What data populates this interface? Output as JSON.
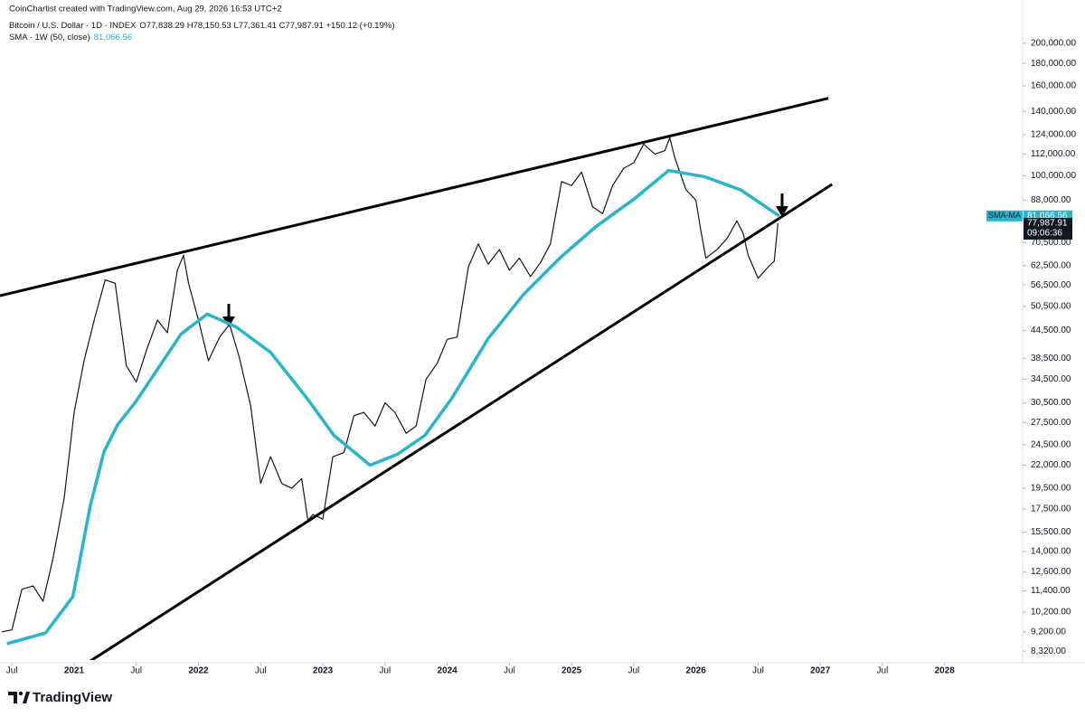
{
  "chart_data": {
    "type": "line",
    "credit": "CoinChartist created with TradingView.com, Aug 29, 2026 16:53 UTC+2",
    "ohlc": "O77,838.29 H78,150.53 L77,361.41 C77,987.91 +150.12 (+0.19%)",
    "log_scale": true,
    "grid": false,
    "xlim": [
      2020.404,
      2028.62
    ],
    "ylim": [
      7940,
      250800
    ],
    "xticks": [
      {
        "value": 2020.5,
        "label": "Jul"
      },
      2021,
      {
        "value": 2021.5,
        "label": "Jul"
      },
      2022,
      {
        "value": 2022.5,
        "label": "Jul"
      },
      2023,
      {
        "value": 2023.5,
        "label": "Jul"
      },
      2024,
      {
        "value": 2024.5,
        "label": "Jul"
      },
      2025,
      {
        "value": 2025.5,
        "label": "Jul"
      },
      2026,
      {
        "value": 2026.5,
        "label": "Jul"
      },
      2027,
      {
        "value": 2027.5,
        "label": "Jul"
      },
      2028
    ],
    "yticks": [
      {
        "value": 200000,
        "label": "200,000.00"
      },
      {
        "value": 180000,
        "label": "180,000.00"
      },
      {
        "value": 160000,
        "label": "160,000.00"
      },
      {
        "value": 140000,
        "label": "140,000.00"
      },
      {
        "value": 124000,
        "label": "124,000.00"
      },
      {
        "value": 112000,
        "label": "112,000.00"
      },
      {
        "value": 100000,
        "label": "100,000.00"
      },
      {
        "value": 88000,
        "label": "88,000.00"
      },
      {
        "value": 70500,
        "label": "70,500.00"
      },
      {
        "value": 62500,
        "label": "62,500.00"
      },
      {
        "value": 56500,
        "label": "56,500.00"
      },
      {
        "value": 50500,
        "label": "50,500.00"
      },
      {
        "value": 44500,
        "label": "44,500.00"
      },
      {
        "value": 38500,
        "label": "38,500.00"
      },
      {
        "value": 34500,
        "label": "34,500.00"
      },
      {
        "value": 30500,
        "label": "30,500.00"
      },
      {
        "value": 27500,
        "label": "27,500.00"
      },
      {
        "value": 24500,
        "label": "24,500.00"
      },
      {
        "value": 22000,
        "label": "22,000.00"
      },
      {
        "value": 19500,
        "label": "19,500.00"
      },
      {
        "value": 17500,
        "label": "17,500.00"
      },
      {
        "value": 15500,
        "label": "15,500.00"
      },
      {
        "value": 14000,
        "label": "14,000.00"
      },
      {
        "value": 12600,
        "label": "12,600.00"
      },
      {
        "value": 11400,
        "label": "11,400.00"
      },
      {
        "value": 10200,
        "label": "10,200.00"
      },
      {
        "value": 9200,
        "label": "9,200.00"
      },
      {
        "value": 8320,
        "label": "8,320.00"
      }
    ],
    "series": [
      {
        "name": "Bitcoin / U.S. Dollar · 1D · INDEX",
        "color": "#131722",
        "last_label": "77,987.91",
        "countdown": "09:06:36",
        "x": [
          2020.42,
          2020.5,
          2020.58,
          2020.67,
          2020.75,
          2020.83,
          2020.92,
          2021.0,
          2021.08,
          2021.17,
          2021.25,
          2021.33,
          2021.42,
          2021.5,
          2021.58,
          2021.67,
          2021.75,
          2021.83,
          2021.88,
          2021.92,
          2022.0,
          2022.08,
          2022.17,
          2022.25,
          2022.33,
          2022.42,
          2022.5,
          2022.58,
          2022.67,
          2022.75,
          2022.83,
          2022.88,
          2022.92,
          2023.0,
          2023.08,
          2023.17,
          2023.25,
          2023.33,
          2023.42,
          2023.5,
          2023.58,
          2023.67,
          2023.75,
          2023.83,
          2023.92,
          2024.0,
          2024.08,
          2024.17,
          2024.25,
          2024.33,
          2024.42,
          2024.5,
          2024.58,
          2024.67,
          2024.75,
          2024.83,
          2024.92,
          2025.0,
          2025.08,
          2025.17,
          2025.25,
          2025.33,
          2025.42,
          2025.5,
          2025.58,
          2025.67,
          2025.75,
          2025.79,
          2025.83,
          2025.92,
          2026.0,
          2026.04,
          2026.08,
          2026.17,
          2026.25,
          2026.33,
          2026.38,
          2026.42,
          2026.5,
          2026.58,
          2026.63,
          2026.66
        ],
        "values": [
          9200,
          9300,
          11500,
          11700,
          10800,
          13500,
          18500,
          29000,
          38000,
          48000,
          58000,
          57000,
          37000,
          34000,
          40000,
          47000,
          44000,
          61000,
          66000,
          57000,
          47000,
          38000,
          43000,
          46000,
          38500,
          30000,
          20000,
          23000,
          20000,
          19500,
          20500,
          16500,
          17000,
          16600,
          23000,
          23500,
          28500,
          29000,
          27000,
          30500,
          29000,
          26000,
          27000,
          34500,
          37500,
          42500,
          43000,
          62000,
          70000,
          63000,
          68000,
          61000,
          65000,
          59000,
          63500,
          70000,
          97000,
          95000,
          102000,
          85000,
          82000,
          95000,
          104000,
          107000,
          118000,
          112000,
          114000,
          122000,
          110000,
          93000,
          88000,
          75000,
          65000,
          68000,
          72000,
          79000,
          74000,
          66000,
          58500,
          62000,
          64000,
          77987.91
        ]
      },
      {
        "name": "SMA · 1W (50, close)",
        "color": "#26b5cc",
        "tag": "SMA-MA",
        "last_label": "81,066.56",
        "x": [
          2020.46,
          2020.77,
          2020.99,
          2021.13,
          2021.24,
          2021.35,
          2021.49,
          2021.86,
          2022.07,
          2022.3,
          2022.58,
          2022.87,
          2023.09,
          2023.38,
          2023.6,
          2023.82,
          2024.04,
          2024.33,
          2024.62,
          2024.91,
          2025.2,
          2025.5,
          2025.78,
          2026.07,
          2026.36,
          2026.67
        ],
        "values": [
          8650,
          9150,
          11060,
          17800,
          23600,
          27200,
          30500,
          43700,
          48500,
          45400,
          39700,
          31300,
          25700,
          22000,
          23300,
          25700,
          31300,
          42700,
          54000,
          65200,
          76800,
          88400,
          102800,
          99500,
          92900,
          81066.56
        ]
      }
    ],
    "trendlines": [
      {
        "x": [
          2020.404,
          2027.065
        ],
        "y": [
          53400,
          150000
        ]
      },
      {
        "x": [
          2021.131,
          2027.095
        ],
        "y": [
          7900,
          95600
        ]
      }
    ]
  },
  "footer": {
    "brand": "TradingView"
  }
}
